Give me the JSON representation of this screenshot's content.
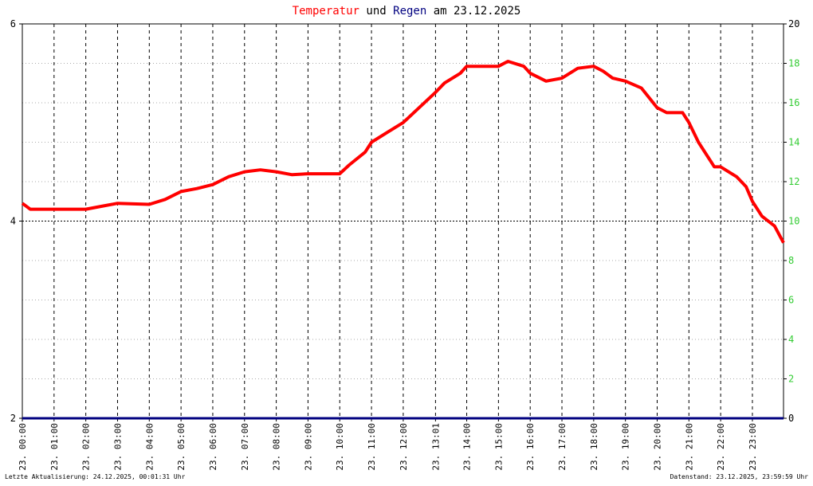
{
  "chart_data": {
    "type": "line",
    "title_parts": [
      {
        "text": "Temperatur",
        "color": "#ff0000"
      },
      {
        "text": "und",
        "color": "#000000"
      },
      {
        "text": "Regen",
        "color": "#000080"
      },
      {
        "text": "am 23.12.2025",
        "color": "#000000"
      }
    ],
    "footer_left": "Letzte Aktualisierung: 24.12.2025, 00:01:31 Uhr",
    "footer_right": "Datenstand: 23.12.2025, 23:59:59 Uhr",
    "xlim": [
      0,
      23.98
    ],
    "xticks": [
      {
        "value": 0,
        "label": "23. 00:00"
      },
      {
        "value": 1,
        "label": "23. 01:00"
      },
      {
        "value": 2,
        "label": "23. 02:00"
      },
      {
        "value": 3,
        "label": "23. 03:00"
      },
      {
        "value": 4,
        "label": "23. 04:00"
      },
      {
        "value": 5,
        "label": "23. 05:00"
      },
      {
        "value": 6,
        "label": "23. 06:00"
      },
      {
        "value": 7,
        "label": "23. 07:00"
      },
      {
        "value": 8,
        "label": "23. 08:00"
      },
      {
        "value": 9,
        "label": "23. 09:00"
      },
      {
        "value": 10,
        "label": "23. 10:00"
      },
      {
        "value": 11,
        "label": "23. 11:00"
      },
      {
        "value": 12,
        "label": "23. 12:00"
      },
      {
        "value": 13.017,
        "label": "23. 13:01"
      },
      {
        "value": 14,
        "label": "23. 14:00"
      },
      {
        "value": 15,
        "label": "23. 15:00"
      },
      {
        "value": 16,
        "label": "23. 16:00"
      },
      {
        "value": 17,
        "label": "23. 17:00"
      },
      {
        "value": 18,
        "label": "23. 18:00"
      },
      {
        "value": 19,
        "label": "23. 19:00"
      },
      {
        "value": 20,
        "label": "23. 20:00"
      },
      {
        "value": 21,
        "label": "23. 21:00"
      },
      {
        "value": 22,
        "label": "23. 22:00"
      },
      {
        "value": 23,
        "label": "23. 23:00"
      }
    ],
    "ylim": [
      2,
      6
    ],
    "yticks": [
      2,
      4,
      6
    ],
    "y2lim": [
      0,
      20
    ],
    "y2ticks": [
      0,
      2,
      4,
      6,
      8,
      10,
      12,
      14,
      16,
      18,
      20
    ],
    "y2tick_color": "#33cc33",
    "series": [
      {
        "name": "Temperatur",
        "color": "#ff0000",
        "x": [
          0,
          0.25,
          0.5,
          1,
          2,
          2.5,
          3,
          4,
          4.5,
          5,
          5.5,
          6,
          6.5,
          7,
          7.5,
          8,
          8.5,
          9,
          10,
          10.3,
          10.8,
          11,
          11.5,
          12,
          12.5,
          13,
          13.3,
          13.8,
          14,
          15,
          15.3,
          15.8,
          16,
          16.5,
          17,
          17.5,
          18,
          18.3,
          18.6,
          19,
          19.5,
          20,
          20.3,
          20.8,
          21,
          21.3,
          21.8,
          22,
          22.5,
          22.8,
          23,
          23.3,
          23.7,
          23.98
        ],
        "values": [
          4.18,
          4.12,
          4.12,
          4.12,
          4.12,
          4.15,
          4.18,
          4.17,
          4.22,
          4.3,
          4.33,
          4.37,
          4.45,
          4.5,
          4.52,
          4.5,
          4.47,
          4.48,
          4.48,
          4.57,
          4.7,
          4.8,
          4.9,
          5.0,
          5.15,
          5.3,
          5.4,
          5.5,
          5.57,
          5.57,
          5.62,
          5.57,
          5.5,
          5.42,
          5.45,
          5.55,
          5.57,
          5.52,
          5.45,
          5.42,
          5.35,
          5.15,
          5.1,
          5.1,
          5.0,
          4.8,
          4.55,
          4.55,
          4.45,
          4.35,
          4.2,
          4.05,
          3.95,
          3.78
        ]
      },
      {
        "name": "Regen",
        "color": "#000080",
        "axis": "y2",
        "x": [
          0,
          23.98
        ],
        "values": [
          0,
          0
        ]
      }
    ]
  }
}
